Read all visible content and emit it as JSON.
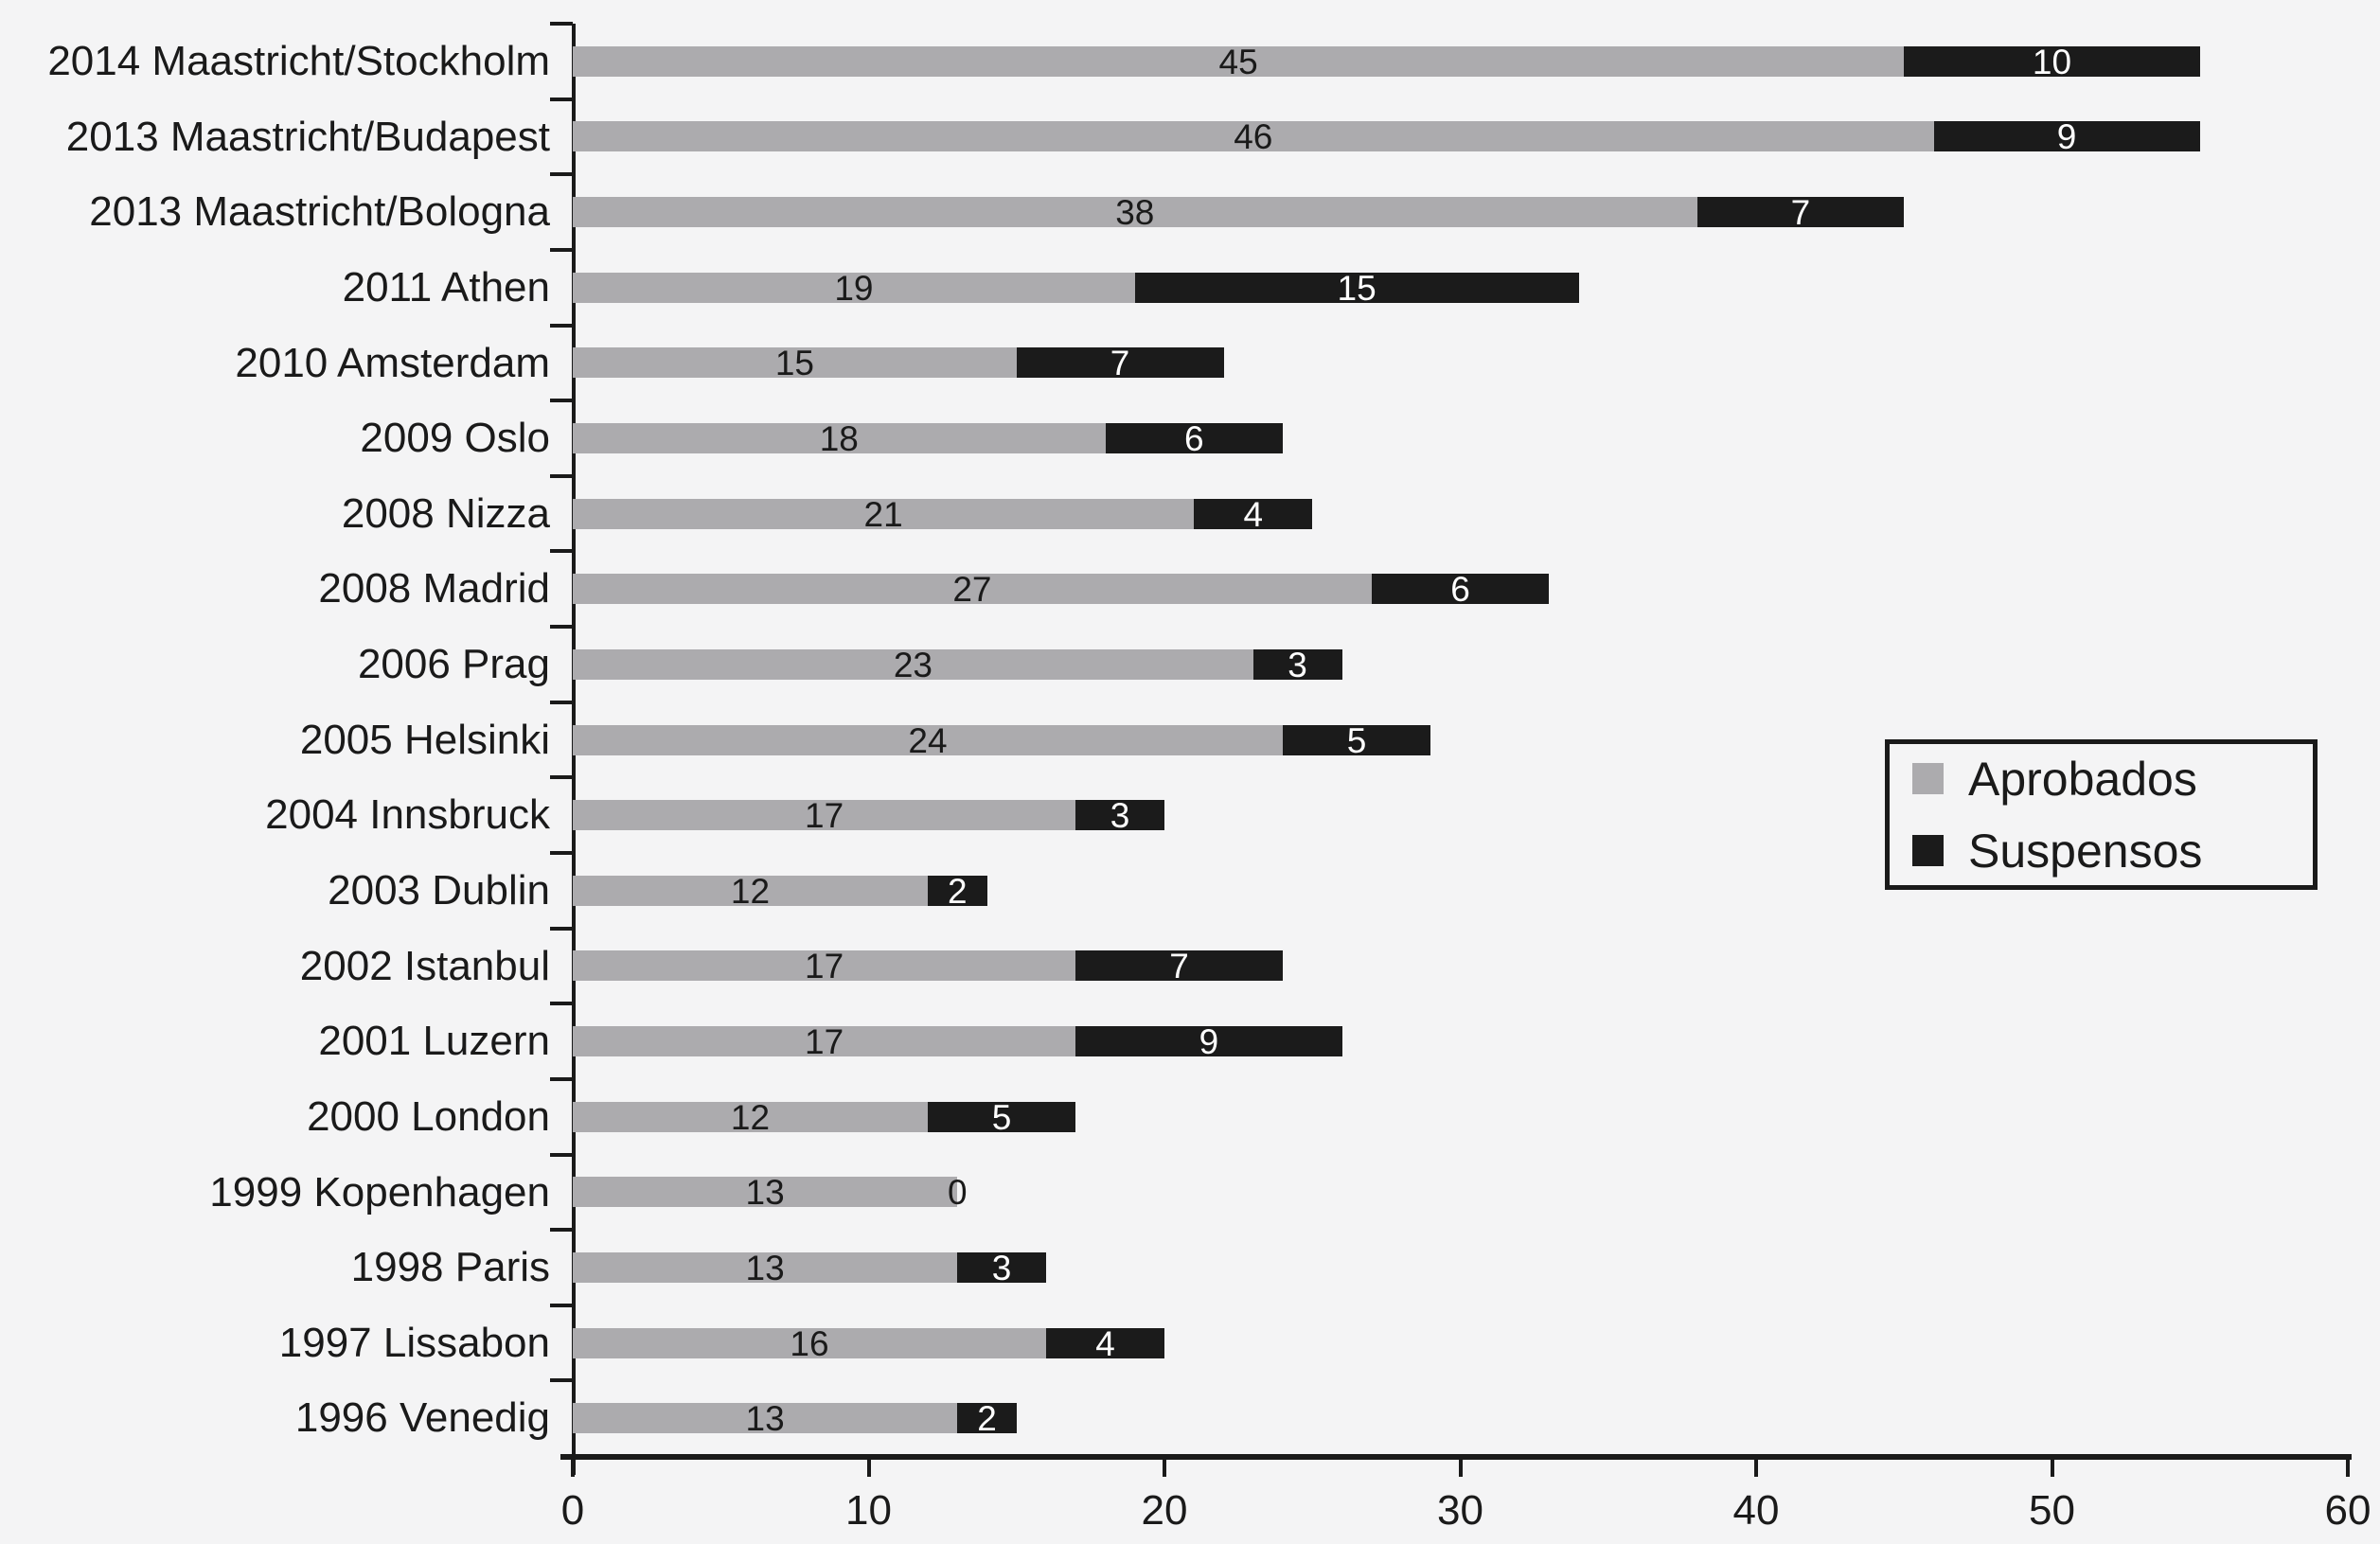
{
  "chart_data": {
    "type": "bar",
    "orientation": "horizontal",
    "stacked": true,
    "title": "",
    "xlabel": "",
    "ylabel": "",
    "xlim": [
      0,
      60
    ],
    "x_ticks": [
      0,
      10,
      20,
      30,
      40,
      50,
      60
    ],
    "grid": false,
    "background_color": "#f4f4f5",
    "categories": [
      "2014 Maastricht/Stockholm",
      "2013 Maastricht/Budapest",
      "2013 Maastricht/Bologna",
      "2011 Athen",
      "2010 Amsterdam",
      "2009 Oslo",
      "2008 Nizza",
      "2008 Madrid",
      "2006 Prag",
      "2005 Helsinki",
      "2004 Innsbruck",
      "2003 Dublin",
      "2002 Istanbul",
      "2001 Luzern",
      "2000 London",
      "1999 Kopenhagen",
      "1998 Paris",
      "1997 Lissabon",
      "1996 Venedig"
    ],
    "series": [
      {
        "name": "Aprobados",
        "color": "#acabae",
        "label_color": "#1a1a1a",
        "values": [
          45,
          46,
          38,
          19,
          15,
          18,
          21,
          27,
          23,
          24,
          17,
          12,
          17,
          17,
          12,
          13,
          13,
          16,
          13
        ]
      },
      {
        "name": "Suspensos",
        "color": "#1b1b1b",
        "label_color": "#ffffff",
        "values": [
          10,
          9,
          7,
          15,
          7,
          6,
          4,
          6,
          3,
          5,
          3,
          2,
          7,
          9,
          5,
          0,
          3,
          4,
          2
        ]
      }
    ],
    "legend": {
      "position": "center-right",
      "entries": [
        "Aprobados",
        "Suspensos"
      ]
    },
    "value_labels": "centered on each segment"
  }
}
